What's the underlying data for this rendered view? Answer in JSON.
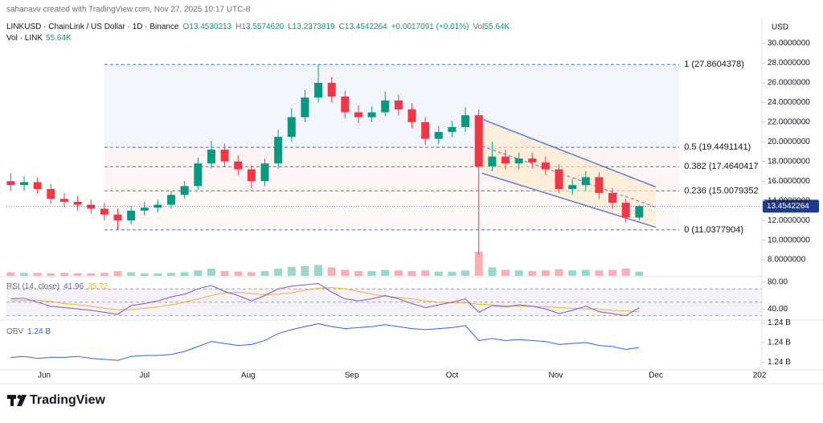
{
  "header": {
    "credit": "sahanavv created with TradingView.com, Nov 27, 2025 10:17 UTC-8"
  },
  "legend": {
    "symbol": "LINKUSD · ChainLink / US Dollar · 1D · Binance",
    "ohlc": [
      {
        "key": "O",
        "value": "13.4530213"
      },
      {
        "key": "H",
        "value": "13.5574620"
      },
      {
        "key": "L",
        "value": "13.2373819"
      },
      {
        "key": "C",
        "value": "13.4542264"
      }
    ],
    "change": "+0.0017091 (+0.01%)",
    "vol_key": "Vol",
    "vol_value": "55.64K",
    "vol_line_label": "Vol · LINK",
    "vol_line_value": "55.64K"
  },
  "footer": {
    "brand": "TradingView"
  },
  "chart_data": {
    "type": "candlestick",
    "currency": "USD",
    "up_color": "#089981",
    "down_color": "#f23645",
    "xlim": [
      -11.3,
      214.7
    ],
    "xticks": [
      {
        "value": 0,
        "label": "Jun"
      },
      {
        "value": 30,
        "label": "Jul"
      },
      {
        "value": 61,
        "label": "Aug"
      },
      {
        "value": 92,
        "label": "Sep"
      },
      {
        "value": 122,
        "label": "Oct"
      },
      {
        "value": 153,
        "label": "Nov"
      },
      {
        "value": 183,
        "label": "Dec"
      },
      {
        "value": 214,
        "label": "202"
      }
    ],
    "ylim": [
      6.37,
      30.74
    ],
    "yticks": [
      {
        "value": 30,
        "label": "30.0000000"
      },
      {
        "value": 28,
        "label": "28.0000000"
      },
      {
        "value": 26,
        "label": "26.0000000"
      },
      {
        "value": 24,
        "label": "24.0000000"
      },
      {
        "value": 22,
        "label": "22.0000000"
      },
      {
        "value": 20,
        "label": "20.0000000"
      },
      {
        "value": 18,
        "label": "18.0000000"
      },
      {
        "value": 16,
        "label": "16.0000000"
      },
      {
        "value": 14,
        "label": "14.0000000"
      },
      {
        "value": 12,
        "label": "12.0000000"
      },
      {
        "value": 10,
        "label": "10.0000000"
      },
      {
        "value": 8,
        "label": "8.0000000"
      }
    ],
    "last_price": {
      "value": 13.4542264,
      "label": "13.4542264",
      "color": "#1e3a8a"
    },
    "x": [
      -10,
      -6,
      -2,
      2,
      6,
      10,
      14,
      18,
      22,
      26,
      30,
      34,
      38,
      42,
      46,
      50,
      54,
      58,
      62,
      66,
      70,
      74,
      78,
      82,
      86,
      90,
      94,
      98,
      102,
      106,
      110,
      114,
      118,
      122,
      126,
      130,
      134,
      138,
      142,
      146,
      150,
      154,
      158,
      162,
      166,
      170,
      174,
      178
    ],
    "open": [
      16.0,
      15.6,
      15.9,
      15.2,
      14.2,
      13.9,
      13.6,
      13.2,
      12.6,
      12.0,
      13.0,
      13.3,
      13.6,
      14.6,
      15.5,
      17.8,
      19.2,
      18.0,
      17.2,
      16.0,
      17.8,
      20.5,
      22.5,
      24.5,
      26.0,
      24.6,
      23.0,
      22.5,
      23.0,
      24.2,
      23.3,
      22.0,
      20.3,
      21.0,
      21.5,
      22.7,
      17.5,
      18.5,
      17.8,
      18.3,
      17.9,
      17.2,
      15.2,
      15.6,
      16.4,
      14.8,
      13.8,
      12.3
    ],
    "high": [
      16.8,
      16.5,
      16.4,
      15.7,
      14.8,
      14.5,
      14.1,
      13.8,
      13.2,
      13.5,
      13.9,
      14.1,
      15.0,
      16.0,
      18.4,
      20.1,
      19.8,
      18.6,
      17.6,
      18.3,
      21.2,
      23.4,
      25.3,
      27.86,
      26.6,
      25.2,
      23.7,
      23.6,
      25.1,
      24.8,
      23.9,
      22.5,
      21.6,
      22.1,
      23.5,
      23.3,
      20.0,
      19.2,
      18.9,
      18.9,
      18.5,
      17.7,
      16.2,
      17.0,
      16.9,
      15.3,
      14.2,
      13.56
    ],
    "low": [
      15.0,
      15.0,
      14.7,
      13.7,
      13.3,
      13.0,
      12.7,
      12.0,
      11.04,
      11.6,
      12.5,
      12.8,
      13.2,
      14.2,
      15.1,
      17.3,
      17.4,
      16.6,
      15.3,
      15.5,
      17.3,
      20.0,
      22.0,
      24.0,
      24.0,
      22.4,
      21.9,
      22.0,
      22.6,
      22.7,
      21.4,
      19.7,
      19.8,
      20.5,
      21.0,
      8.5,
      17.0,
      17.2,
      17.2,
      17.3,
      16.6,
      14.8,
      14.6,
      15.0,
      14.2,
      13.2,
      11.8,
      12.0
    ],
    "close": [
      15.6,
      15.9,
      15.2,
      14.2,
      13.9,
      13.6,
      13.2,
      12.6,
      12.0,
      13.0,
      13.3,
      13.6,
      14.6,
      15.5,
      17.8,
      19.2,
      18.0,
      17.2,
      16.0,
      17.8,
      20.5,
      22.5,
      24.5,
      26.0,
      24.6,
      23.0,
      22.5,
      23.0,
      24.2,
      23.3,
      22.0,
      20.3,
      21.0,
      21.5,
      22.7,
      17.5,
      18.5,
      17.8,
      18.3,
      17.9,
      17.2,
      15.2,
      15.6,
      16.4,
      14.8,
      13.8,
      12.3,
      13.45
    ],
    "volume": [
      6,
      5,
      5,
      4,
      5,
      4,
      4,
      5,
      8,
      6,
      4,
      4,
      5,
      6,
      9,
      12,
      8,
      7,
      6,
      8,
      12,
      15,
      16,
      18,
      14,
      10,
      8,
      8,
      10,
      9,
      8,
      9,
      7,
      7,
      9,
      40,
      14,
      10,
      9,
      8,
      9,
      11,
      9,
      10,
      9,
      10,
      12,
      7
    ],
    "fib_x": [
      18,
      190
    ],
    "fib": [
      {
        "label": "1 (27.8604378)",
        "value": 27.8604378,
        "color": "#4a6fd1"
      },
      {
        "label": "0.5 (19.4491141)",
        "value": 19.4491141,
        "color": "#4a6fd1"
      },
      {
        "label": "0.382 (17.4640417",
        "value": 17.4640417,
        "color": "#d9435a"
      },
      {
        "label": "0.236 (15.0079352",
        "value": 15.0079352,
        "color": "#d9435a"
      },
      {
        "label": "0 (11.0377904)",
        "value": 11.0377904,
        "color": "#4a6fd1"
      }
    ],
    "channel": {
      "color": "#5b7ee0",
      "upper": {
        "x": [
          131,
          183
        ],
        "y": [
          22.3,
          15.4
        ]
      },
      "middle": {
        "x": [
          131,
          183
        ],
        "y": [
          19.55,
          13.35
        ]
      },
      "lower": {
        "x": [
          131,
          183
        ],
        "y": [
          16.8,
          11.3
        ]
      }
    },
    "rsi": {
      "title": "RSI (14, close)",
      "value_label": "41.96",
      "ma_label": "35.72",
      "color": "#7e57c2",
      "ma_color": "#f0b429",
      "ylim": [
        27,
        87
      ],
      "yticks": [
        {
          "value": 80,
          "label": "80.00"
        },
        {
          "value": 40,
          "label": "40.00"
        }
      ],
      "levels": [
        70,
        50,
        30
      ],
      "values": [
        55,
        56,
        50,
        44,
        42,
        40,
        38,
        35,
        32,
        45,
        48,
        52,
        58,
        62,
        70,
        75,
        66,
        60,
        52,
        60,
        70,
        74,
        76,
        78,
        65,
        55,
        52,
        55,
        60,
        55,
        48,
        42,
        46,
        50,
        55,
        35,
        45,
        43,
        46,
        44,
        40,
        33,
        38,
        44,
        36,
        33,
        30,
        41.96
      ],
      "ma": [
        52,
        53,
        53,
        51,
        48,
        46,
        44,
        41,
        39,
        39,
        41,
        43,
        46,
        50,
        55,
        60,
        64,
        65,
        63,
        61,
        62,
        64,
        68,
        71,
        72,
        70,
        66,
        62,
        59,
        57,
        55,
        52,
        50,
        49,
        49,
        47,
        46,
        45,
        44,
        44,
        43,
        42,
        41,
        40,
        40,
        38,
        37,
        35.72
      ]
    },
    "obv": {
      "title": "OBV",
      "value_label": "1.24 B",
      "color": "#2962ff",
      "ylim": [
        1.2374,
        1.2421
      ],
      "yticks": [
        {
          "value": 1.242,
          "label": "1.24 B"
        },
        {
          "value": 1.24,
          "label": "1.24 B"
        },
        {
          "value": 1.238,
          "label": "1.24 B"
        }
      ],
      "values": [
        1.2385,
        1.2386,
        1.2384,
        1.2385,
        1.2385,
        1.2386,
        1.2384,
        1.2383,
        1.2382,
        1.2386,
        1.2387,
        1.2387,
        1.2388,
        1.2391,
        1.2396,
        1.2401,
        1.2399,
        1.2397,
        1.2398,
        1.2402,
        1.2409,
        1.2413,
        1.2416,
        1.2419,
        1.2416,
        1.2414,
        1.2415,
        1.2416,
        1.2418,
        1.2416,
        1.2414,
        1.2413,
        1.2414,
        1.2415,
        1.2417,
        1.2402,
        1.2404,
        1.2402,
        1.2403,
        1.2402,
        1.2401,
        1.2398,
        1.2399,
        1.24,
        1.2397,
        1.2396,
        1.2393,
        1.2395
      ]
    }
  }
}
